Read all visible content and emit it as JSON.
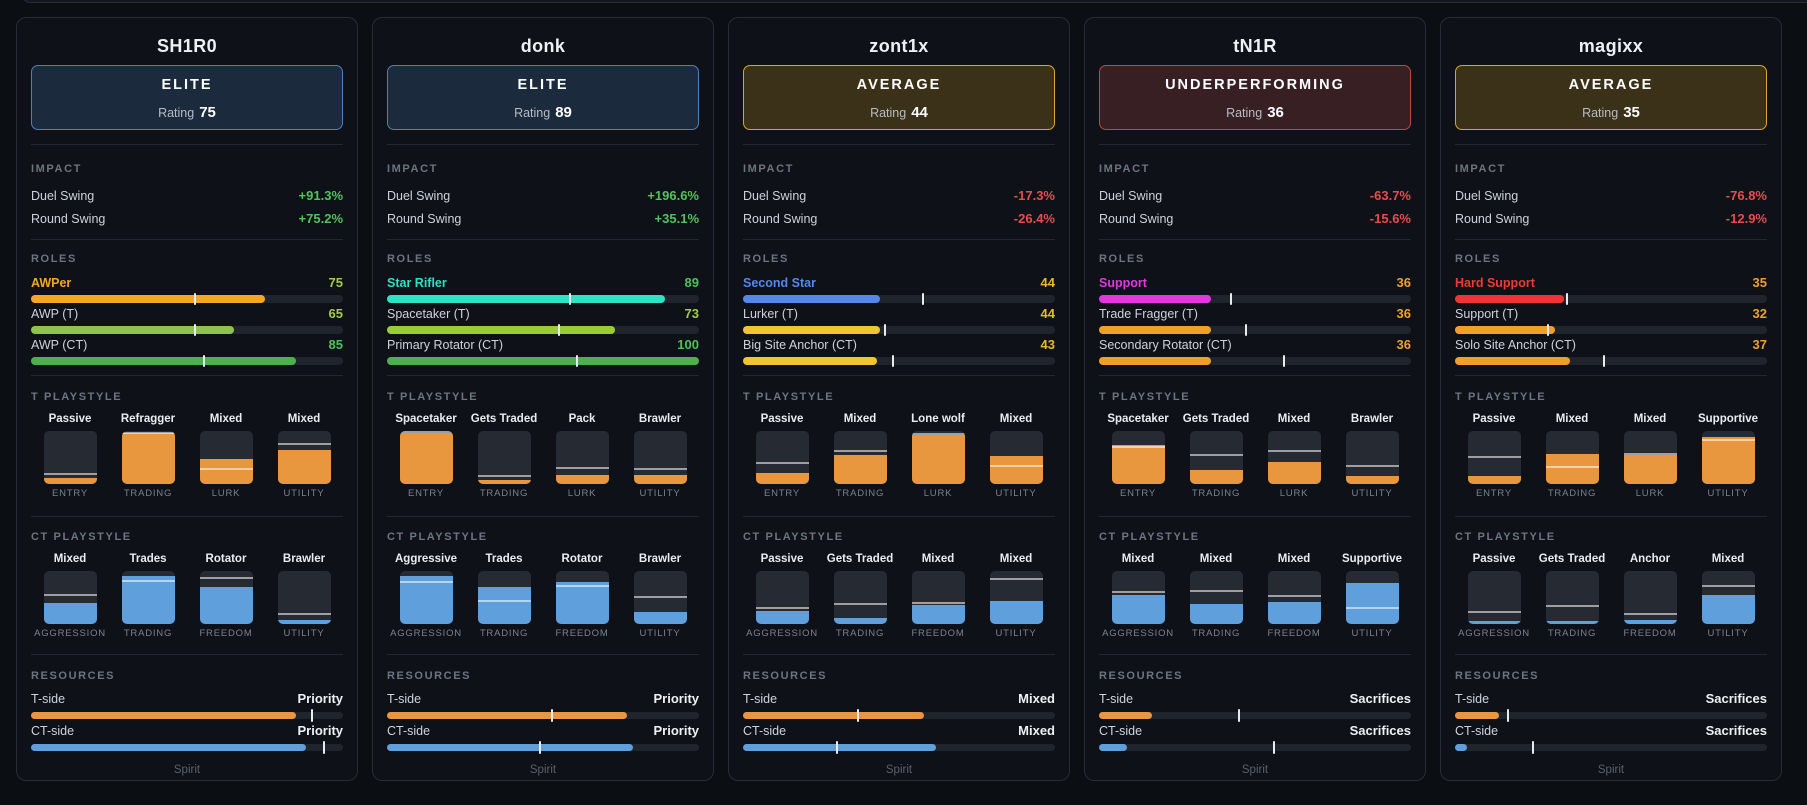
{
  "team_footer": "Spirit",
  "section_headers": {
    "impact": "IMPACT",
    "roles": "ROLES",
    "t_playstyle": "T PLAYSTYLE",
    "ct_playstyle": "CT PLAYSTYLE",
    "resources": "RESOURCES"
  },
  "colors": {
    "t_accent": "#e9973f",
    "ct_accent": "#5f9fdc",
    "impact_pos": "#53c15c",
    "impact_neg": "#e84c4c",
    "tier_elite_bg": "#1b2a3c",
    "tier_elite_border": "#4e81b7",
    "tier_avg_bg": "#3a3118",
    "tier_avg_border": "#d9a91e",
    "tier_under_bg": "#381f23",
    "tier_under_border": "#bb4a42"
  },
  "players": [
    {
      "name": "SH1R0",
      "tier": {
        "label": "ELITE",
        "rating_label": "Rating",
        "rating": "75",
        "bg": "#1b2a3c",
        "border": "#4e81b7"
      },
      "impact": [
        {
          "label": "Duel Swing",
          "value": "+91.3%",
          "color": "#53c15c"
        },
        {
          "label": "Round Swing",
          "value": "+75.2%",
          "color": "#53c15c"
        }
      ],
      "roles": [
        {
          "label": "AWPer",
          "label_color": "#f6a623",
          "bold": true,
          "value": "75",
          "value_color": "#a4cb4e",
          "fill": 75,
          "fill_color": "#f6a623",
          "tick": 52.5
        },
        {
          "label": "AWP (T)",
          "value": "65",
          "value_color": "#a4cb4e",
          "fill": 65,
          "fill_color": "#8fc34c",
          "tick": 52.5
        },
        {
          "label": "AWP (CT)",
          "value": "85",
          "value_color": "#4fc35a",
          "fill": 85,
          "fill_color": "#4caf50",
          "tick": 55.5
        }
      ],
      "t_playstyle": [
        {
          "top": "Passive",
          "bottom": "ENTRY",
          "fill": 12,
          "marker": 19
        },
        {
          "top": "Refragger",
          "bottom": "TRADING",
          "fill": 96,
          "marker": 97
        },
        {
          "top": "Mixed",
          "bottom": "LURK",
          "fill": 47,
          "marker": 28
        },
        {
          "top": "Mixed",
          "bottom": "UTILITY",
          "fill": 65,
          "marker": 76
        }
      ],
      "ct_playstyle": [
        {
          "top": "Mixed",
          "bottom": "AGGRESSION",
          "fill": 40,
          "marker": 55
        },
        {
          "top": "Trades",
          "bottom": "TRADING",
          "fill": 90,
          "marker": 82
        },
        {
          "top": "Rotator",
          "bottom": "FREEDOM",
          "fill": 70,
          "marker": 86
        },
        {
          "top": "Brawler",
          "bottom": "UTILITY",
          "fill": 8,
          "marker": 18
        }
      ],
      "resources": [
        {
          "label": "T-side",
          "value": "Priority",
          "fill": 85,
          "tick": 90,
          "color": "#e9973f"
        },
        {
          "label": "CT-side",
          "value": "Priority",
          "fill": 88,
          "tick": 94,
          "color": "#5f9fdc"
        }
      ]
    },
    {
      "name": "donk",
      "tier": {
        "label": "ELITE",
        "rating_label": "Rating",
        "rating": "89",
        "bg": "#1b2a3c",
        "border": "#4e81b7"
      },
      "impact": [
        {
          "label": "Duel Swing",
          "value": "+196.6%",
          "color": "#53c15c"
        },
        {
          "label": "Round Swing",
          "value": "+35.1%",
          "color": "#53c15c"
        }
      ],
      "roles": [
        {
          "label": "Star Rifler",
          "label_color": "#2fe2c4",
          "bold": true,
          "value": "89",
          "value_color": "#4fc35a",
          "fill": 89,
          "fill_color": "#2fe2c4",
          "tick": 58.8
        },
        {
          "label": "Spacetaker (T)",
          "value": "73",
          "value_color": "#a4cb4e",
          "fill": 73,
          "fill_color": "#9acd32",
          "tick": 55
        },
        {
          "label": "Primary Rotator (CT)",
          "value": "100",
          "value_color": "#4fc35a",
          "fill": 100,
          "fill_color": "#4caf50",
          "tick": 61
        }
      ],
      "t_playstyle": [
        {
          "top": "Spacetaker",
          "bottom": "ENTRY",
          "fill": 97,
          "marker": 98
        },
        {
          "top": "Gets Traded",
          "bottom": "TRADING",
          "fill": 7,
          "marker": 15
        },
        {
          "top": "Pack",
          "bottom": "LURK",
          "fill": 17,
          "marker": 31
        },
        {
          "top": "Brawler",
          "bottom": "UTILITY",
          "fill": 17,
          "marker": 29
        }
      ],
      "ct_playstyle": [
        {
          "top": "Aggressive",
          "bottom": "AGGRESSION",
          "fill": 91,
          "marker": 80
        },
        {
          "top": "Trades",
          "bottom": "TRADING",
          "fill": 69,
          "marker": 44
        },
        {
          "top": "Rotator",
          "bottom": "FREEDOM",
          "fill": 80,
          "marker": 72
        },
        {
          "top": "Brawler",
          "bottom": "UTILITY",
          "fill": 22,
          "marker": 51
        }
      ],
      "resources": [
        {
          "label": "T-side",
          "value": "Priority",
          "fill": 77,
          "tick": 53,
          "color": "#e9973f"
        },
        {
          "label": "CT-side",
          "value": "Priority",
          "fill": 79,
          "tick": 49,
          "color": "#5f9fdc"
        }
      ]
    },
    {
      "name": "zont1x",
      "tier": {
        "label": "AVERAGE",
        "rating_label": "Rating",
        "rating": "44",
        "bg": "#3a3118",
        "border": "#d9a91e"
      },
      "impact": [
        {
          "label": "Duel Swing",
          "value": "-17.3%",
          "color": "#e84c4c"
        },
        {
          "label": "Round Swing",
          "value": "-26.4%",
          "color": "#e84c4c"
        }
      ],
      "roles": [
        {
          "label": "Second Star",
          "label_color": "#5687ea",
          "bold": true,
          "value": "44",
          "value_color": "#e7bb26",
          "fill": 44,
          "fill_color": "#5687ea",
          "tick": 57.8
        },
        {
          "label": "Lurker (T)",
          "value": "44",
          "value_color": "#e7bb26",
          "fill": 44,
          "fill_color": "#eec632",
          "tick": 45.6
        },
        {
          "label": "Big Site Anchor (CT)",
          "value": "43",
          "value_color": "#e7bb26",
          "fill": 43,
          "fill_color": "#eec632",
          "tick": 48.2
        }
      ],
      "t_playstyle": [
        {
          "top": "Passive",
          "bottom": "ENTRY",
          "fill": 21,
          "marker": 40
        },
        {
          "top": "Mixed",
          "bottom": "TRADING",
          "fill": 54,
          "marker": 62
        },
        {
          "top": "Lone wolf",
          "bottom": "LURK",
          "fill": 92,
          "marker": 95
        },
        {
          "top": "Mixed",
          "bottom": "UTILITY",
          "fill": 52,
          "marker": 34
        }
      ],
      "ct_playstyle": [
        {
          "top": "Passive",
          "bottom": "AGGRESSION",
          "fill": 24,
          "marker": 31
        },
        {
          "top": "Gets Traded",
          "bottom": "TRADING",
          "fill": 11,
          "marker": 37
        },
        {
          "top": "Mixed",
          "bottom": "FREEDOM",
          "fill": 36,
          "marker": 39
        },
        {
          "top": "Mixed",
          "bottom": "UTILITY",
          "fill": 44,
          "marker": 84
        }
      ],
      "resources": [
        {
          "label": "T-side",
          "value": "Mixed",
          "fill": 58,
          "tick": 37,
          "color": "#e9973f"
        },
        {
          "label": "CT-side",
          "value": "Mixed",
          "fill": 62,
          "tick": 30,
          "color": "#5f9fdc"
        }
      ]
    },
    {
      "name": "tN1R",
      "tier": {
        "label": "UNDERPERFORMING",
        "rating_label": "Rating",
        "rating": "36",
        "bg": "#381f23",
        "border": "#bb4a42"
      },
      "impact": [
        {
          "label": "Duel Swing",
          "value": "-63.7%",
          "color": "#e84c4c"
        },
        {
          "label": "Round Swing",
          "value": "-15.6%",
          "color": "#e84c4c"
        }
      ],
      "roles": [
        {
          "label": "Support",
          "label_color": "#e138e1",
          "bold": true,
          "value": "36",
          "value_color": "#efa12e",
          "fill": 36,
          "fill_color": "#e138e1",
          "tick": 42.4
        },
        {
          "label": "Trade Fragger (T)",
          "value": "36",
          "value_color": "#efa12e",
          "fill": 36,
          "fill_color": "#f0a028",
          "tick": 47
        },
        {
          "label": "Secondary Rotator (CT)",
          "value": "36",
          "value_color": "#efa12e",
          "fill": 36,
          "fill_color": "#f0a028",
          "tick": 59.4
        }
      ],
      "t_playstyle": [
        {
          "top": "Spacetaker",
          "bottom": "ENTRY",
          "fill": 74,
          "marker": 70
        },
        {
          "top": "Gets Traded",
          "bottom": "TRADING",
          "fill": 27,
          "marker": 54
        },
        {
          "top": "Mixed",
          "bottom": "LURK",
          "fill": 42,
          "marker": 62
        },
        {
          "top": "Brawler",
          "bottom": "UTILITY",
          "fill": 15,
          "marker": 34
        }
      ],
      "ct_playstyle": [
        {
          "top": "Mixed",
          "bottom": "AGGRESSION",
          "fill": 55,
          "marker": 61
        },
        {
          "top": "Mixed",
          "bottom": "TRADING",
          "fill": 38,
          "marker": 62
        },
        {
          "top": "Mixed",
          "bottom": "FREEDOM",
          "fill": 42,
          "marker": 53
        },
        {
          "top": "Supportive",
          "bottom": "UTILITY",
          "fill": 78,
          "marker": 31
        }
      ],
      "resources": [
        {
          "label": "T-side",
          "value": "Sacrifices",
          "fill": 17,
          "tick": 45,
          "color": "#e9973f"
        },
        {
          "label": "CT-side",
          "value": "Sacrifices",
          "fill": 9,
          "tick": 56,
          "color": "#5f9fdc"
        }
      ]
    },
    {
      "name": "magixx",
      "tier": {
        "label": "AVERAGE",
        "rating_label": "Rating",
        "rating": "35",
        "bg": "#3a3118",
        "border": "#d9a91e"
      },
      "impact": [
        {
          "label": "Duel Swing",
          "value": "-76.8%",
          "color": "#e84c4c"
        },
        {
          "label": "Round Swing",
          "value": "-12.9%",
          "color": "#e84c4c"
        }
      ],
      "roles": [
        {
          "label": "Hard Support",
          "label_color": "#f03a34",
          "bold": true,
          "value": "35",
          "value_color": "#efa12e",
          "fill": 35,
          "fill_color": "#f03434",
          "tick": 35.8
        },
        {
          "label": "Support (T)",
          "value": "32",
          "value_color": "#efa12e",
          "fill": 32,
          "fill_color": "#f0a028",
          "tick": 29.7
        },
        {
          "label": "Solo Site Anchor (CT)",
          "value": "37",
          "value_color": "#efa12e",
          "fill": 37,
          "fill_color": "#f0a028",
          "tick": 47.9
        }
      ],
      "t_playstyle": [
        {
          "top": "Passive",
          "bottom": "ENTRY",
          "fill": 15,
          "marker": 51
        },
        {
          "top": "Mixed",
          "bottom": "TRADING",
          "fill": 56,
          "marker": 33
        },
        {
          "top": "Mixed",
          "bottom": "LURK",
          "fill": 55,
          "marker": 57
        },
        {
          "top": "Supportive",
          "bottom": "UTILITY",
          "fill": 88,
          "marker": 83
        }
      ],
      "ct_playstyle": [
        {
          "top": "Passive",
          "bottom": "AGGRESSION",
          "fill": 5,
          "marker": 22
        },
        {
          "top": "Gets Traded",
          "bottom": "TRADING",
          "fill": 5,
          "marker": 34
        },
        {
          "top": "Anchor",
          "bottom": "FREEDOM",
          "fill": 7,
          "marker": 19
        },
        {
          "top": "Mixed",
          "bottom": "UTILITY",
          "fill": 54,
          "marker": 72
        }
      ],
      "resources": [
        {
          "label": "T-side",
          "value": "Sacrifices",
          "fill": 14,
          "tick": 17,
          "color": "#e9973f"
        },
        {
          "label": "CT-side",
          "value": "Sacrifices",
          "fill": 4,
          "tick": 25,
          "color": "#5f9fdc"
        }
      ]
    }
  ]
}
